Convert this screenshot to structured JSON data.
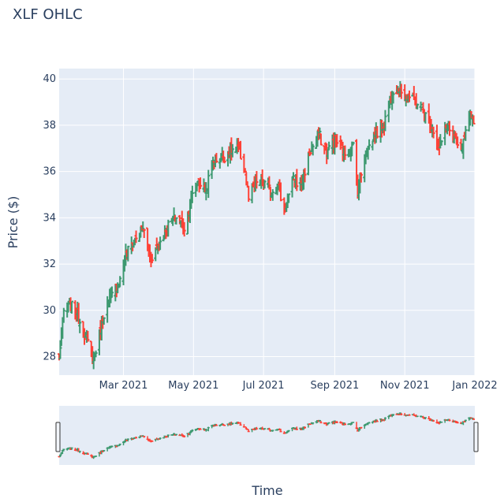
{
  "chart_data": {
    "type": "ohlc",
    "title": "XLF OHLC",
    "xlabel": "Time",
    "ylabel": "Price ($)",
    "x_range": [
      "2021-01-04",
      "2022-01-01"
    ],
    "ylim": [
      27.2,
      40.45
    ],
    "y_ticks": [
      28,
      30,
      32,
      34,
      36,
      38,
      40
    ],
    "x_ticks": [
      {
        "date": "2021-03-01",
        "label": "Mar 2021"
      },
      {
        "date": "2021-05-01",
        "label": "May 2021"
      },
      {
        "date": "2021-07-01",
        "label": "Jul 2021"
      },
      {
        "date": "2021-09-01",
        "label": "Sep 2021"
      },
      {
        "date": "2021-11-01",
        "label": "Nov 2021"
      },
      {
        "date": "2022-01-01",
        "label": "Jan 2022"
      }
    ],
    "colors": {
      "increasing": "#3d9970",
      "decreasing": "#ff4136",
      "plot_bg": "#e5ecf6",
      "grid": "#ffffff"
    },
    "rangeslider": true,
    "close_path": [
      [
        "2021-01-04",
        28.0
      ],
      [
        "2021-01-08",
        29.9
      ],
      [
        "2021-01-14",
        30.2
      ],
      [
        "2021-01-20",
        29.8
      ],
      [
        "2021-01-28",
        28.7
      ],
      [
        "2021-02-03",
        27.9
      ],
      [
        "2021-02-08",
        28.9
      ],
      [
        "2021-02-12",
        29.9
      ],
      [
        "2021-02-18",
        30.5
      ],
      [
        "2021-02-26",
        31.3
      ],
      [
        "2021-03-03",
        32.4
      ],
      [
        "2021-03-10",
        33.0
      ],
      [
        "2021-03-18",
        33.6
      ],
      [
        "2021-03-24",
        32.2
      ],
      [
        "2021-03-31",
        32.8
      ],
      [
        "2021-04-08",
        33.6
      ],
      [
        "2021-04-16",
        34.0
      ],
      [
        "2021-04-23",
        33.6
      ],
      [
        "2021-04-29",
        34.8
      ],
      [
        "2021-05-05",
        35.6
      ],
      [
        "2021-05-12",
        35.2
      ],
      [
        "2021-05-18",
        36.5
      ],
      [
        "2021-05-26",
        36.6
      ],
      [
        "2021-06-02",
        36.9
      ],
      [
        "2021-06-09",
        37.0
      ],
      [
        "2021-06-15",
        36.0
      ],
      [
        "2021-06-18",
        34.8
      ],
      [
        "2021-06-25",
        35.6
      ],
      [
        "2021-07-01",
        35.5
      ],
      [
        "2021-07-08",
        35.1
      ],
      [
        "2021-07-13",
        35.5
      ],
      [
        "2021-07-19",
        34.3
      ],
      [
        "2021-07-27",
        35.6
      ],
      [
        "2021-08-03",
        35.5
      ],
      [
        "2021-08-10",
        36.8
      ],
      [
        "2021-08-18",
        37.6
      ],
      [
        "2021-08-25",
        36.8
      ],
      [
        "2021-09-01",
        37.4
      ],
      [
        "2021-09-10",
        36.8
      ],
      [
        "2021-09-17",
        37.1
      ],
      [
        "2021-09-21",
        35.2
      ],
      [
        "2021-09-28",
        36.8
      ],
      [
        "2021-10-05",
        37.5
      ],
      [
        "2021-10-14",
        38.1
      ],
      [
        "2021-10-22",
        39.6
      ],
      [
        "2021-10-29",
        39.5
      ],
      [
        "2021-11-05",
        39.2
      ],
      [
        "2021-11-12",
        39.0
      ],
      [
        "2021-11-18",
        38.5
      ],
      [
        "2021-11-26",
        37.8
      ],
      [
        "2021-12-01",
        37.0
      ],
      [
        "2021-12-08",
        38.0
      ],
      [
        "2021-12-14",
        37.3
      ],
      [
        "2021-12-20",
        36.8
      ],
      [
        "2021-12-27",
        38.2
      ],
      [
        "2021-12-31",
        38.3
      ]
    ]
  }
}
